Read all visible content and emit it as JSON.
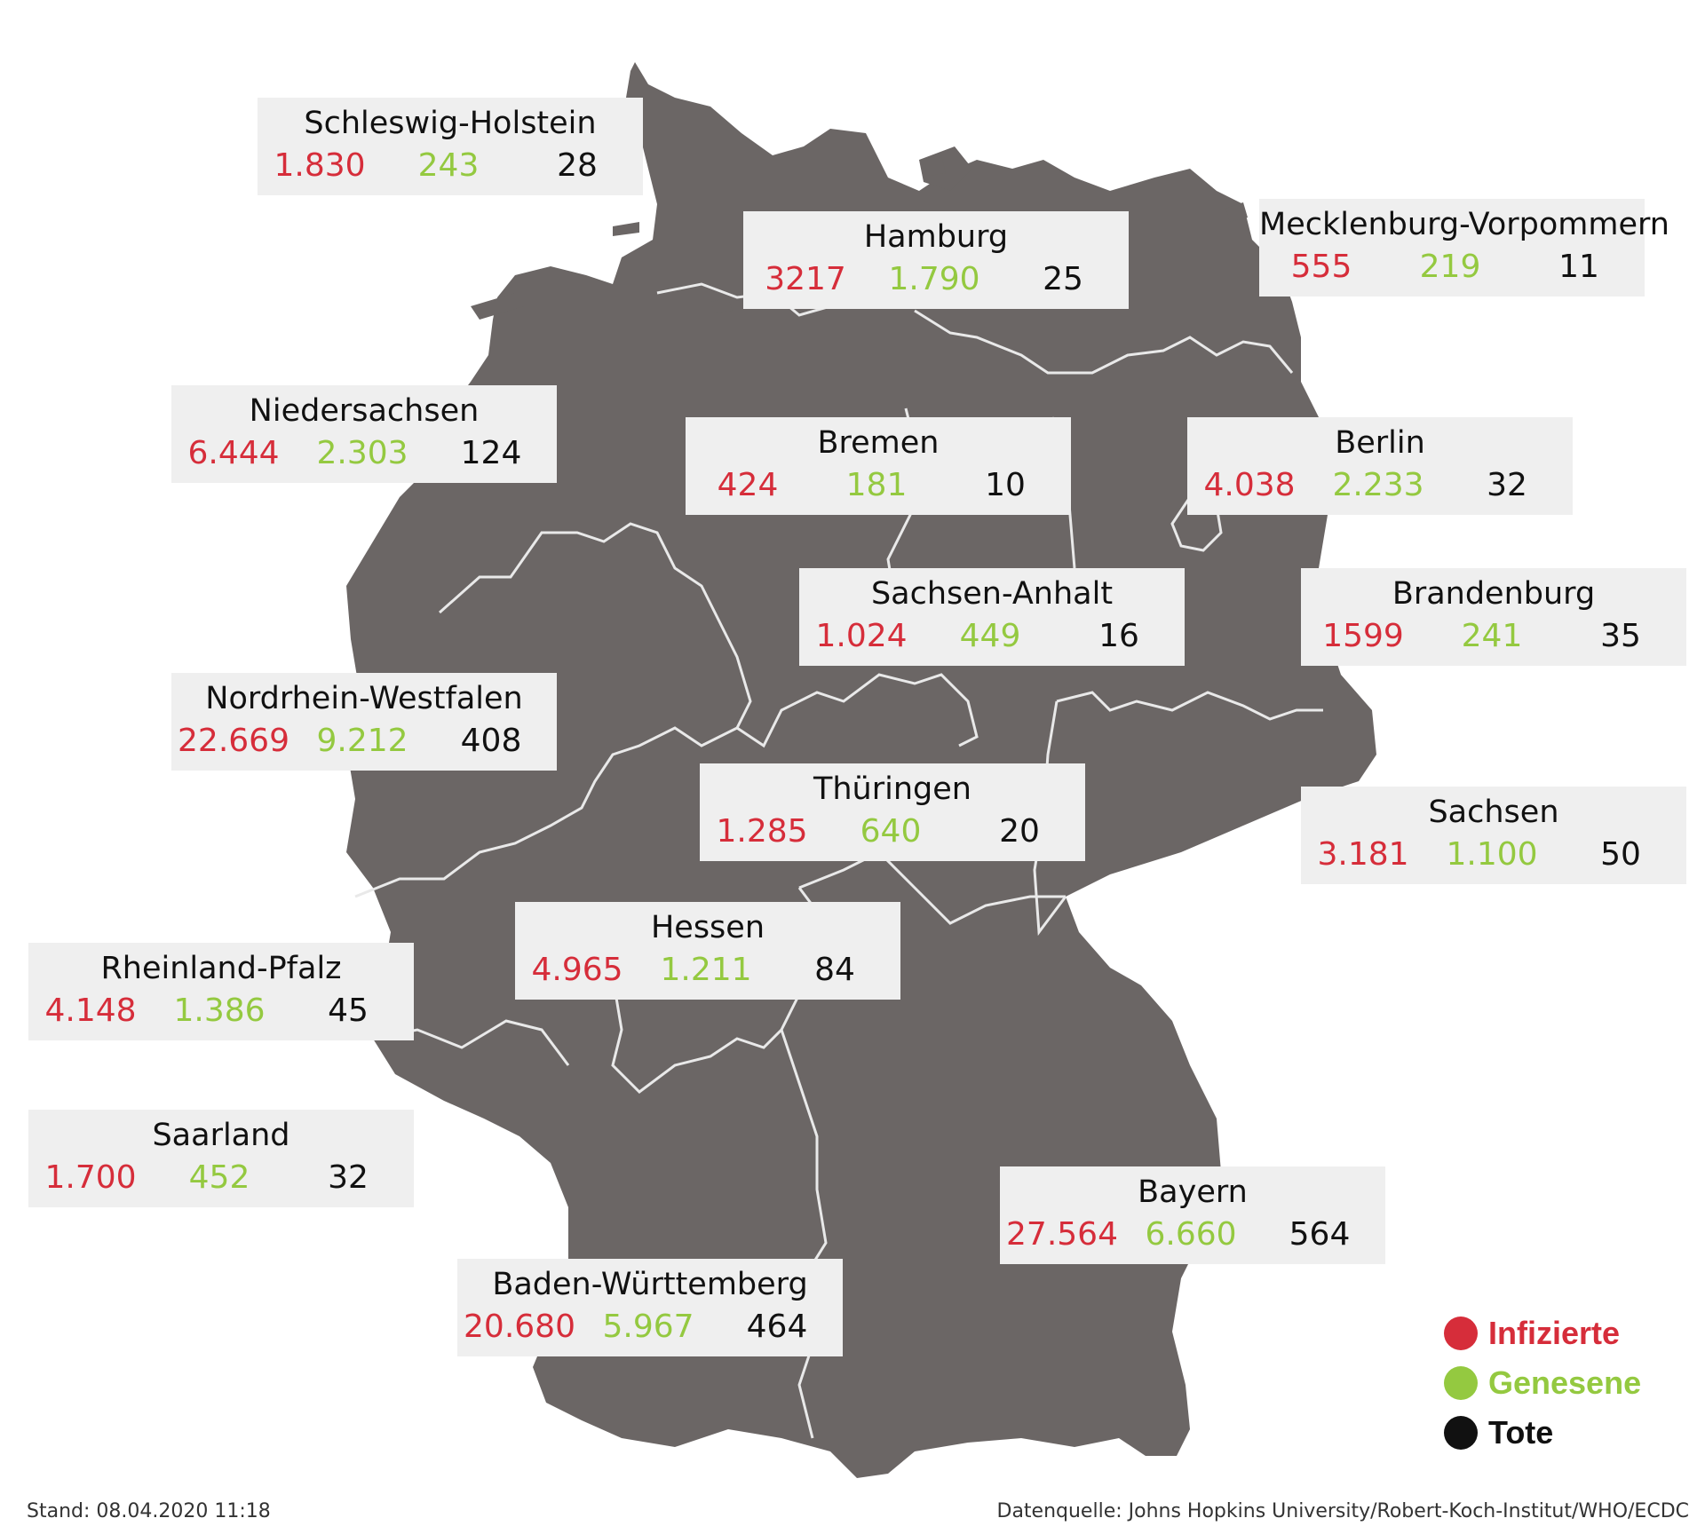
{
  "colors": {
    "infected": "#d62d3a",
    "recovered": "#94c940",
    "deaths": "#111111",
    "map_fill": "#6b6665",
    "state_border": "#e9e9e9",
    "label_bg": "#efefef"
  },
  "states": [
    {
      "name": "Schleswig-Holstein",
      "infected": "1.830",
      "recovered": "243",
      "deaths": "28"
    },
    {
      "name": "Hamburg",
      "infected": "3217",
      "recovered": "1.790",
      "deaths": "25"
    },
    {
      "name": "Mecklenburg-Vorpommern",
      "infected": "555",
      "recovered": "219",
      "deaths": "11"
    },
    {
      "name": "Niedersachsen",
      "infected": "6.444",
      "recovered": "2.303",
      "deaths": "124"
    },
    {
      "name": "Bremen",
      "infected": "424",
      "recovered": "181",
      "deaths": "10"
    },
    {
      "name": "Berlin",
      "infected": "4.038",
      "recovered": "2.233",
      "deaths": "32"
    },
    {
      "name": "Sachsen-Anhalt",
      "infected": "1.024",
      "recovered": "449",
      "deaths": "16"
    },
    {
      "name": "Brandenburg",
      "infected": "1599",
      "recovered": "241",
      "deaths": "35"
    },
    {
      "name": "Nordrhein-Westfalen",
      "infected": "22.669",
      "recovered": "9.212",
      "deaths": "408"
    },
    {
      "name": "Thüringen",
      "infected": "1.285",
      "recovered": "640",
      "deaths": "20"
    },
    {
      "name": "Sachsen",
      "infected": "3.181",
      "recovered": "1.100",
      "deaths": "50"
    },
    {
      "name": "Hessen",
      "infected": "4.965",
      "recovered": "1.211",
      "deaths": "84"
    },
    {
      "name": "Rheinland-Pfalz",
      "infected": "4.148",
      "recovered": "1.386",
      "deaths": "45"
    },
    {
      "name": "Saarland",
      "infected": "1.700",
      "recovered": "452",
      "deaths": "32"
    },
    {
      "name": "Bayern",
      "infected": "27.564",
      "recovered": "6.660",
      "deaths": "564"
    },
    {
      "name": "Baden-Württemberg",
      "infected": "20.680",
      "recovered": "5.967",
      "deaths": "464"
    }
  ],
  "legend": [
    {
      "label": "Infizierte",
      "color": "#d62d3a"
    },
    {
      "label": "Genesene",
      "color": "#94c940"
    },
    {
      "label": "Tote",
      "color": "#111111"
    }
  ],
  "footer": {
    "stand": "Stand: 08.04.2020 11:18",
    "source": "Datenquelle: Johns Hopkins University/Robert-Koch-Institut/WHO/ECDC"
  }
}
